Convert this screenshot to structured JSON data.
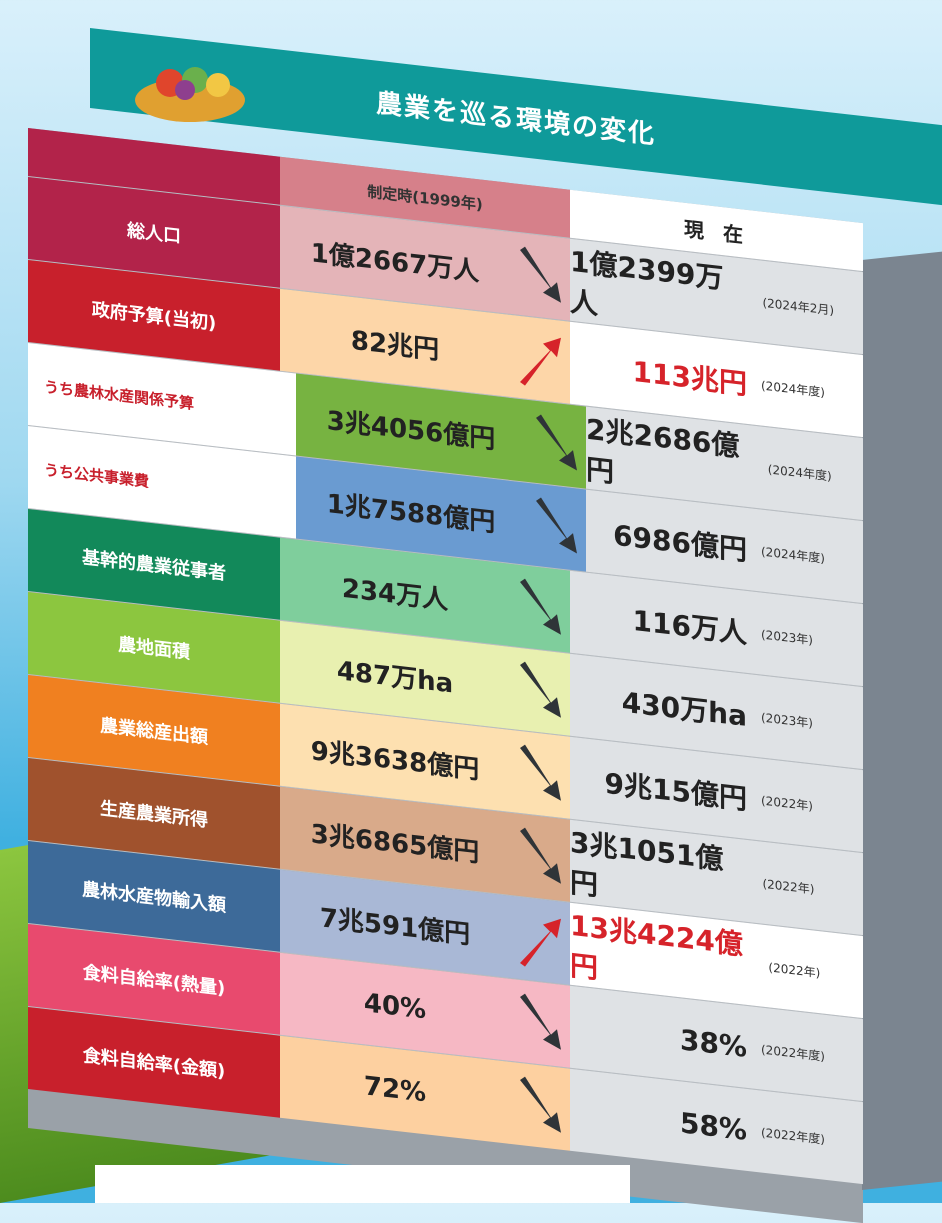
{
  "title": "農業を巡る環境の変化",
  "header": {
    "then": "制定時(1999年)",
    "now": "現 在"
  },
  "rows": [
    {
      "label": "総人口",
      "then": "1億2667万人",
      "now": "1億2399万人",
      "note": "(2024年2月)"
    },
    {
      "label": "政府予算(当初)",
      "then": "82兆円",
      "now": "113兆円",
      "note": "(2024年度)"
    },
    {
      "label": "うち農林水産関係予算",
      "then": "3兆4056億円",
      "now": "2兆2686億円",
      "note": "(2024年度)"
    },
    {
      "label": "うち公共事業費",
      "then": "1兆7588億円",
      "now": "6986億円",
      "note": "(2024年度)"
    },
    {
      "label": "基幹的農業従事者",
      "then": "234万人",
      "now": "116万人",
      "note": "(2023年)"
    },
    {
      "label": "農地面積",
      "then": "487万ha",
      "now": "430万ha",
      "note": "(2023年)"
    },
    {
      "label": "農業総産出額",
      "then": "9兆3638億円",
      "now": "9兆15億円",
      "note": "(2022年)"
    },
    {
      "label": "生産農業所得",
      "then": "3兆6865億円",
      "now": "3兆1051億円",
      "note": "(2022年)"
    },
    {
      "label": "農林水産物輸入額",
      "then": "7兆591億円",
      "now": "13兆4224億円",
      "note": "(2022年)"
    },
    {
      "label": "食料自給率(熱量)",
      "then": "40%",
      "now": "38%",
      "note": "(2022年度)"
    },
    {
      "label": "食料自給率(金額)",
      "then": "72%",
      "now": "58%",
      "note": "(2022年度)"
    }
  ]
}
